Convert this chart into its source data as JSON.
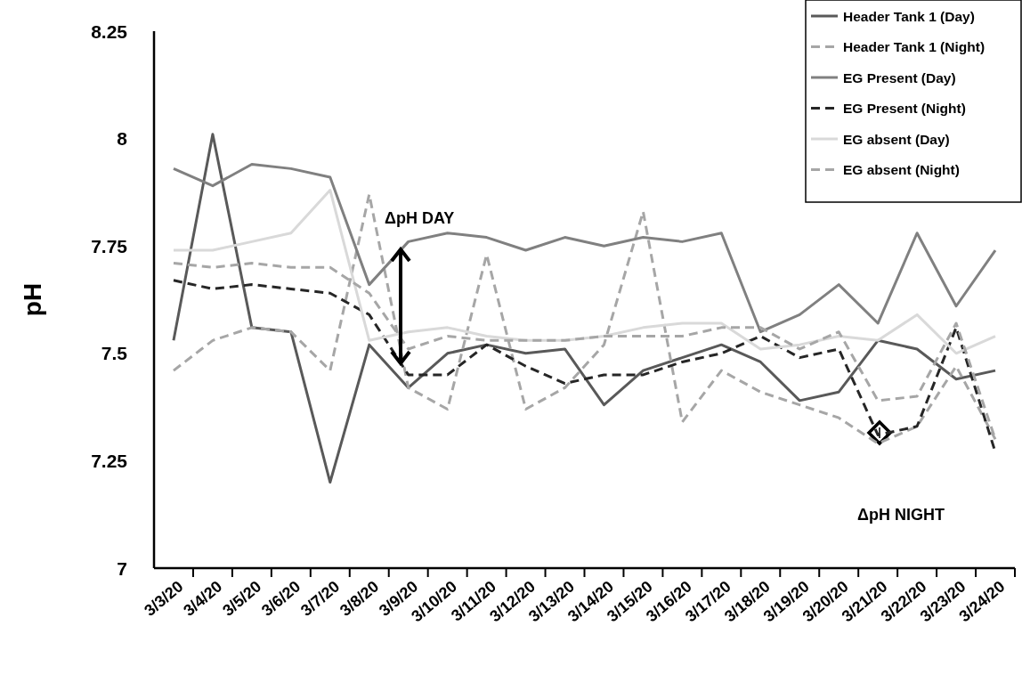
{
  "chart_data": {
    "type": "line",
    "ylabel": "pH",
    "categories": [
      "3/3/20",
      "3/4/20",
      "3/5/20",
      "3/6/20",
      "3/7/20",
      "3/8/20",
      "3/9/20",
      "3/10/20",
      "3/11/20",
      "3/12/20",
      "3/13/20",
      "3/14/20",
      "3/15/20",
      "3/16/20",
      "3/17/20",
      "3/18/20",
      "3/19/20",
      "3/20/20",
      "3/21/20",
      "3/22/20",
      "3/23/20",
      "3/24/20"
    ],
    "series": [
      {
        "name": "Header Tank 1 (Day)",
        "color": "#595959",
        "line_style": "solid",
        "values": [
          7.53,
          8.01,
          7.56,
          7.55,
          7.2,
          7.52,
          7.42,
          7.5,
          7.52,
          7.5,
          7.51,
          7.38,
          7.46,
          7.49,
          7.52,
          7.48,
          7.39,
          7.41,
          7.53,
          7.51,
          7.44,
          7.46
        ]
      },
      {
        "name": "Header Tank 1 (Night)",
        "color": "#a6a6a6",
        "line_style": "dashed",
        "values": [
          7.46,
          7.53,
          7.56,
          7.55,
          7.46,
          7.87,
          7.42,
          7.37,
          7.73,
          7.37,
          7.42,
          7.52,
          7.83,
          7.34,
          7.46,
          7.41,
          7.38,
          7.35,
          7.29,
          7.33,
          7.47,
          7.3
        ]
      },
      {
        "name": "EG Present (Day)",
        "color": "#808080",
        "line_style": "solid",
        "values": [
          7.93,
          7.89,
          7.94,
          7.93,
          7.91,
          7.66,
          7.76,
          7.78,
          7.77,
          7.74,
          7.77,
          7.75,
          7.77,
          7.76,
          7.78,
          7.55,
          7.59,
          7.66,
          7.57,
          7.78,
          7.61,
          7.74
        ]
      },
      {
        "name": "EG Present (Night)",
        "color": "#262626",
        "line_style": "dashed",
        "values": [
          7.67,
          7.65,
          7.66,
          7.65,
          7.64,
          7.59,
          7.45,
          7.45,
          7.52,
          7.47,
          7.43,
          7.45,
          7.45,
          7.48,
          7.5,
          7.54,
          7.49,
          7.51,
          7.31,
          7.33,
          7.56,
          7.27
        ]
      },
      {
        "name": "EG absent (Day)",
        "color": "#d9d9d9",
        "line_style": "solid",
        "values": [
          7.74,
          7.74,
          7.76,
          7.78,
          7.88,
          7.53,
          7.55,
          7.56,
          7.54,
          7.53,
          7.53,
          7.54,
          7.56,
          7.57,
          7.57,
          7.51,
          7.52,
          7.54,
          7.53,
          7.59,
          7.5,
          7.54
        ]
      },
      {
        "name": "EG absent (Night)",
        "color": "#a6a6a6",
        "line_style": "dashed",
        "values": [
          7.71,
          7.7,
          7.71,
          7.7,
          7.7,
          7.64,
          7.51,
          7.54,
          7.53,
          7.53,
          7.53,
          7.54,
          7.54,
          7.54,
          7.56,
          7.56,
          7.51,
          7.55,
          7.39,
          7.4,
          7.57,
          7.3
        ]
      }
    ],
    "ylim": [
      7,
      8.25
    ],
    "yticks": [
      7,
      7.25,
      7.5,
      7.75,
      8,
      8.25
    ],
    "grid": false,
    "legend": "top right",
    "marker": "none",
    "annotations": [
      "ΔpH DAY",
      "ΔpH NIGHT"
    ]
  }
}
